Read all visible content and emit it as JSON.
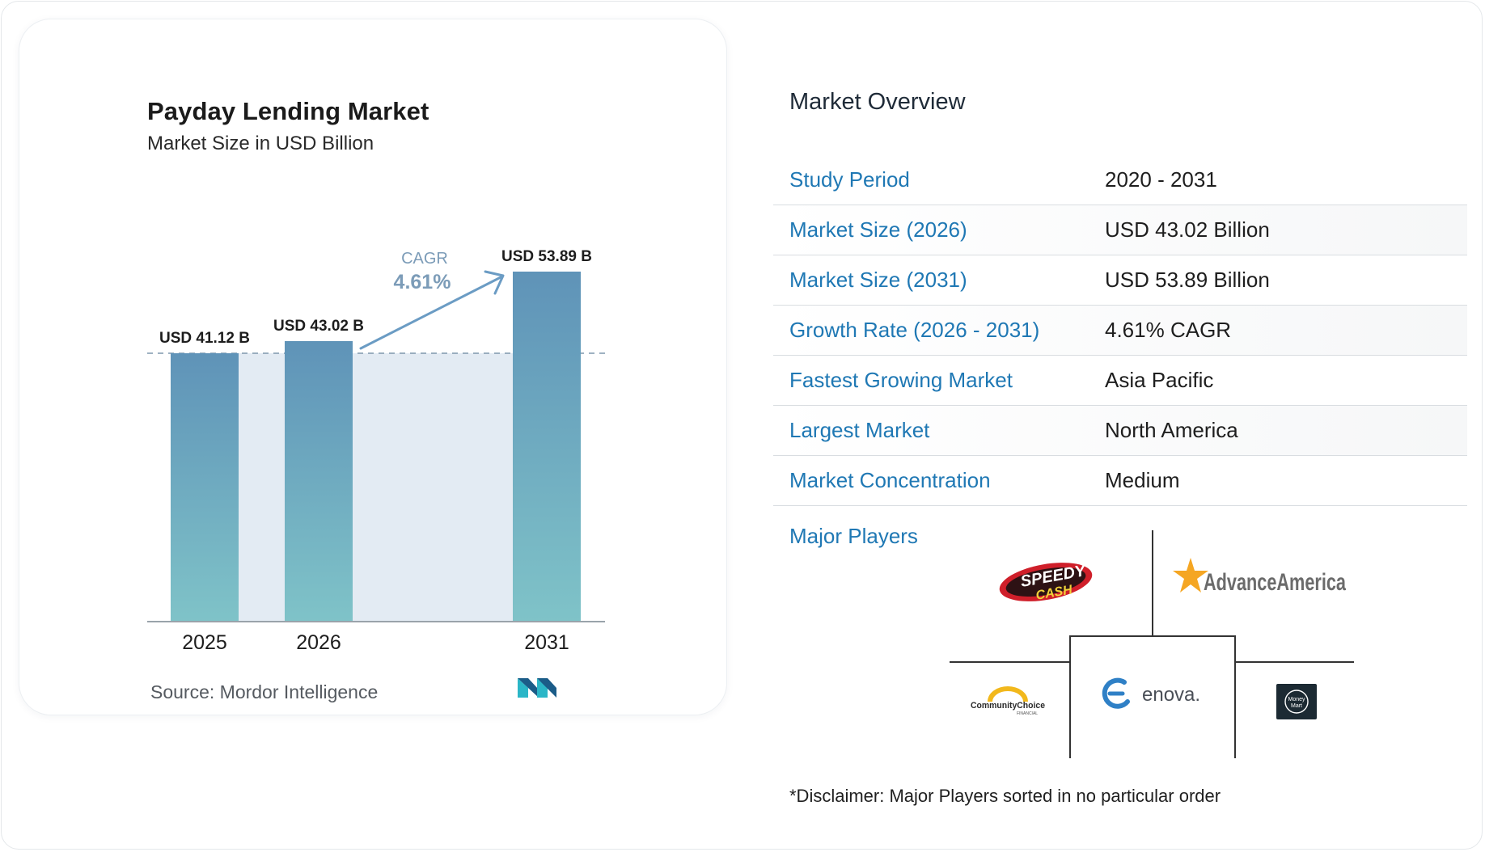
{
  "chart": {
    "title": "Payday Lending Market",
    "subtitle": "Market Size in USD Billion",
    "source": "Source: Mordor Intelligence",
    "cagr_label": "CAGR",
    "cagr_value": "4.61%"
  },
  "chart_data": {
    "type": "bar",
    "categories": [
      "2025",
      "2026",
      "2031"
    ],
    "values": [
      41.12,
      43.02,
      53.89
    ],
    "data_labels": [
      "USD 41.12 B",
      "USD 43.02 B",
      "USD 53.89 B"
    ],
    "title": "Payday Lending Market",
    "subtitle": "Market Size in USD Billion",
    "xlabel": "",
    "ylabel": "",
    "ylim": [
      0,
      60
    ],
    "grid": false,
    "annotation": "CAGR 4.61%",
    "colors": {
      "bar_top": "#5f93b8",
      "bar_bottom": "#7fc3c8",
      "band": "#e3ebf3",
      "accent": "#6b9cc4"
    }
  },
  "overview": {
    "heading": "Market Overview",
    "rows": [
      {
        "label": "Study Period",
        "value": "2020 - 2031"
      },
      {
        "label": "Market Size (2026)",
        "value": "USD 43.02 Billion"
      },
      {
        "label": "Market Size (2031)",
        "value": "USD 53.89 Billion"
      },
      {
        "label": "Growth Rate (2026 - 2031)",
        "value": "4.61% CAGR"
      },
      {
        "label": "Fastest Growing Market",
        "value": "Asia Pacific"
      },
      {
        "label": "Largest Market",
        "value": "North America"
      },
      {
        "label": "Market Concentration",
        "value": "Medium"
      }
    ],
    "label_color": "#1f78b4"
  },
  "players": {
    "heading": "Major Players",
    "logos": {
      "speedy_top": "SPEEDY",
      "speedy_bottom": "CASH",
      "advance_america": "AdvanceAmerica",
      "community_choice": "CommunityChoice",
      "community_choice_sub": "FINANCIAL",
      "enova": "enova.",
      "money_mart_1": "Money",
      "money_mart_2": "Mart"
    },
    "disclaimer": "*Disclaimer: Major Players sorted in no particular order"
  }
}
